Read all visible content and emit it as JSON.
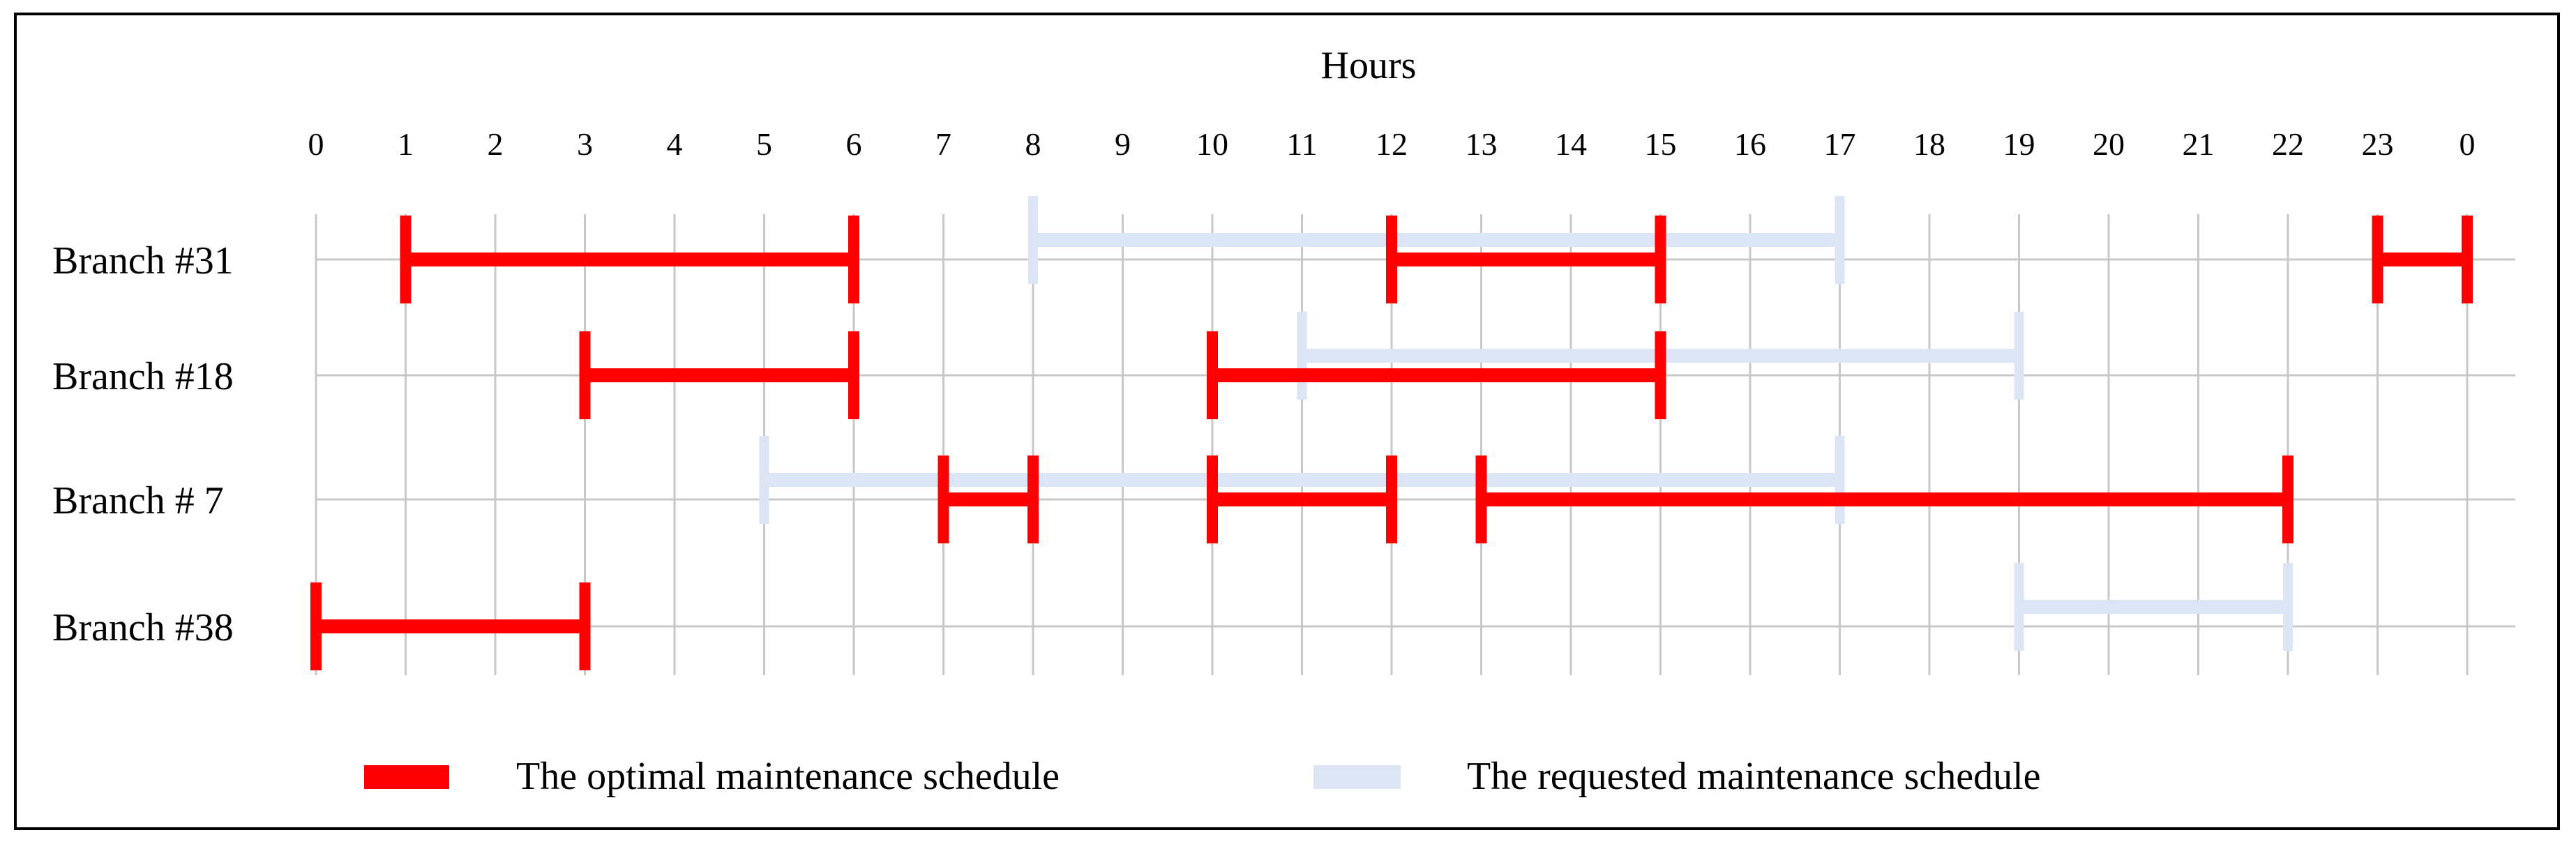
{
  "chart_data": {
    "type": "gantt",
    "title": "Hours",
    "x_ticks": [
      "0",
      "1",
      "2",
      "3",
      "4",
      "5",
      "6",
      "7",
      "8",
      "9",
      "10",
      "11",
      "12",
      "13",
      "14",
      "15",
      "16",
      "17",
      "18",
      "19",
      "20",
      "21",
      "22",
      "23",
      "0"
    ],
    "xlim": [
      0,
      24
    ],
    "grid": true,
    "legend_position": "bottom",
    "rows": [
      "Branch #31",
      "Branch #18",
      "Branch # 7",
      "Branch #38"
    ],
    "series": [
      {
        "name": "The optimal maintenance schedule",
        "color": "#ff0000",
        "intervals": [
          {
            "row": "Branch #31",
            "start": 1,
            "end": 6
          },
          {
            "row": "Branch #31",
            "start": 12,
            "end": 15
          },
          {
            "row": "Branch #31",
            "start": 23,
            "end": 24
          },
          {
            "row": "Branch #18",
            "start": 3,
            "end": 6
          },
          {
            "row": "Branch #18",
            "start": 10,
            "end": 15
          },
          {
            "row": "Branch # 7",
            "start": 7,
            "end": 8
          },
          {
            "row": "Branch # 7",
            "start": 10,
            "end": 12
          },
          {
            "row": "Branch # 7",
            "start": 13,
            "end": 22
          },
          {
            "row": "Branch #38",
            "start": 0,
            "end": 3
          }
        ]
      },
      {
        "name": "The requested maintenance schedule",
        "color": "#dbe5f4",
        "intervals": [
          {
            "row": "Branch #31",
            "start": 8,
            "end": 17
          },
          {
            "row": "Branch #18",
            "start": 11,
            "end": 19
          },
          {
            "row": "Branch # 7",
            "start": 5,
            "end": 17
          },
          {
            "row": "Branch #38",
            "start": 19,
            "end": 22
          }
        ]
      }
    ]
  }
}
